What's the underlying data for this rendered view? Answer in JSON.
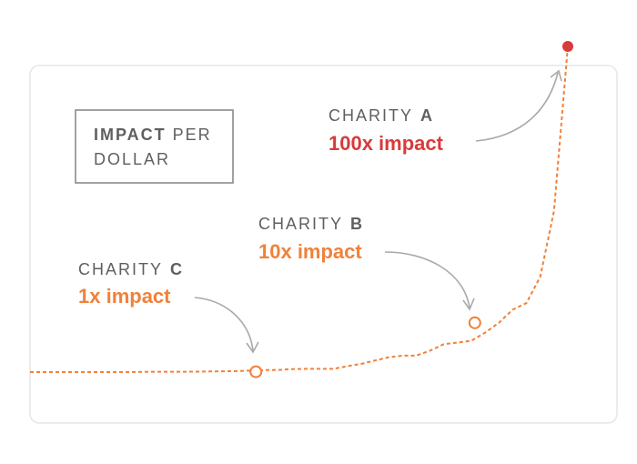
{
  "chart_data": {
    "type": "line",
    "title_bold": "IMPACT",
    "title_rest": "PER",
    "title_line2": "DOLLAR",
    "xlabel": "",
    "ylabel": "",
    "grid": false,
    "colors": {
      "line": "#f0813a",
      "end_point": "#d93a3a",
      "marker_stroke": "#f0813a",
      "arrow": "#a9a9a9",
      "frame": "#e6e6e6"
    },
    "line_y": [
      1,
      1,
      1,
      1,
      1,
      1,
      1,
      1,
      1.05,
      1.1,
      1.12,
      1.12,
      1.15,
      1.2,
      1.25,
      1.3,
      1.45,
      1.6,
      1.65,
      1.9,
      2.0,
      2.0,
      2.0,
      2.8,
      3.5,
      4.5,
      5.5,
      6.0,
      6.0,
      7.5,
      9.5,
      10.0,
      10.5,
      13,
      16,
      20,
      22,
      30,
      50,
      100
    ],
    "annotations": [
      {
        "id": "c",
        "label": "CHARITY",
        "letter": "C",
        "impact_text": "1x impact",
        "value": 1,
        "color": "#f0813a"
      },
      {
        "id": "b",
        "label": "CHARITY",
        "letter": "B",
        "impact_text": "10x impact",
        "value": 10,
        "color": "#f0813a"
      },
      {
        "id": "a",
        "label": "CHARITY",
        "letter": "A",
        "impact_text": "100x impact",
        "value": 100,
        "color": "#d93a3a"
      }
    ]
  }
}
